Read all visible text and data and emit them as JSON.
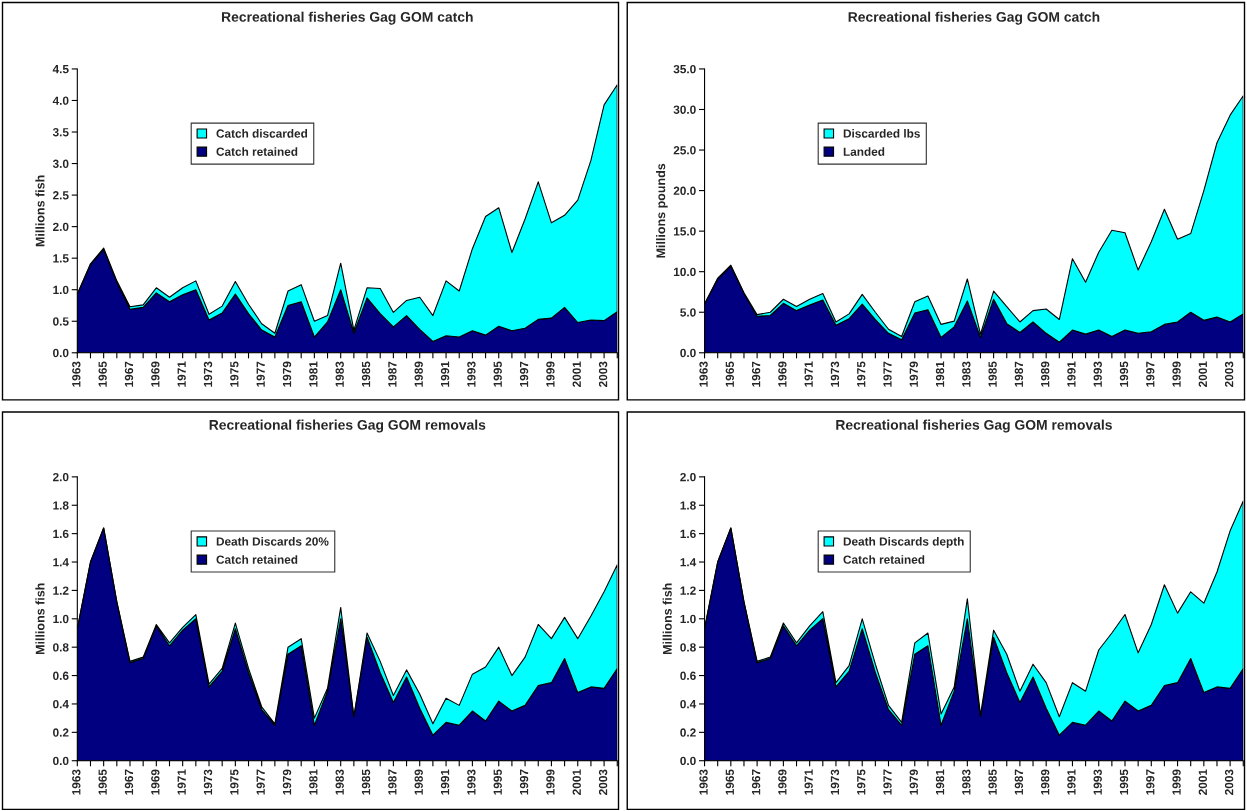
{
  "chart_data": [
    {
      "type": "area",
      "title": "Recreational fisheries Gag GOM catch",
      "ylabel": "Millions fish",
      "stacked": true,
      "legend": "top left",
      "grid": false,
      "categories": [
        "1963",
        null,
        "1965",
        null,
        "1967",
        null,
        "1969",
        null,
        "1971",
        null,
        "1973",
        null,
        "1975",
        null,
        "1977",
        null,
        "1979",
        null,
        "1981",
        null,
        "1983",
        null,
        "1985",
        null,
        "1987",
        null,
        "1989",
        null,
        "1991",
        null,
        "1993",
        null,
        "1995",
        null,
        "1997",
        null,
        "1999",
        null,
        "2001",
        null,
        "2003",
        null
      ],
      "ylim": [
        0,
        4.5
      ],
      "yticks": [
        {
          "value": 0,
          "label": "0.0"
        },
        0.5,
        {
          "value": 1,
          "label": "1.0"
        },
        1.5,
        {
          "value": 2,
          "label": "2.0"
        },
        2.5,
        {
          "value": 3,
          "label": "3.0"
        },
        3.5,
        {
          "value": 4,
          "label": "4.0"
        },
        4.5
      ],
      "series": [
        {
          "name": "Catch retained",
          "color": "#000080",
          "values": [
            0.93,
            1.4,
            1.64,
            1.12,
            0.69,
            0.72,
            0.95,
            0.81,
            0.92,
            1.0,
            0.52,
            0.63,
            0.93,
            0.62,
            0.36,
            0.25,
            0.75,
            0.81,
            0.25,
            0.49,
            1.0,
            0.31,
            0.87,
            0.62,
            0.41,
            0.59,
            0.37,
            0.18,
            0.27,
            0.25,
            0.35,
            0.28,
            0.42,
            0.35,
            0.39,
            0.53,
            0.55,
            0.72,
            0.48,
            0.52,
            0.51,
            0.65
          ]
        },
        {
          "name": "Catch discarded",
          "color": "#00ffff",
          "values": [
            0.0,
            0.01,
            0.02,
            0.02,
            0.04,
            0.04,
            0.08,
            0.07,
            0.11,
            0.14,
            0.09,
            0.11,
            0.2,
            0.15,
            0.1,
            0.06,
            0.23,
            0.27,
            0.25,
            0.1,
            0.42,
            0.05,
            0.16,
            0.4,
            0.23,
            0.24,
            0.51,
            0.41,
            0.87,
            0.73,
            1.3,
            1.88,
            1.88,
            1.24,
            1.73,
            2.18,
            1.51,
            1.46,
            1.94,
            2.53,
            3.42,
            3.6
          ]
        }
      ]
    },
    {
      "type": "area",
      "title": "Recreational fisheries Gag GOM catch",
      "ylabel": "Millions pounds",
      "stacked": true,
      "legend": "top left",
      "grid": false,
      "categories": [
        "1963",
        null,
        "1965",
        null,
        "1967",
        null,
        "1969",
        null,
        "1971",
        null,
        "1973",
        null,
        "1975",
        null,
        "1977",
        null,
        "1979",
        null,
        "1981",
        null,
        "1983",
        null,
        "1985",
        null,
        "1987",
        null,
        "1989",
        null,
        "1991",
        null,
        "1993",
        null,
        "1995",
        null,
        "1997",
        null,
        "1999",
        null,
        "2001",
        null,
        "2003",
        null
      ],
      "ylim": [
        0,
        35
      ],
      "yticks": [
        {
          "value": 0,
          "label": "0.0"
        },
        {
          "value": 5,
          "label": "5.0"
        },
        {
          "value": 10,
          "label": "10.0"
        },
        {
          "value": 15,
          "label": "15.0"
        },
        {
          "value": 20,
          "label": "20.0"
        },
        {
          "value": 25,
          "label": "25.0"
        },
        {
          "value": 30,
          "label": "30.0"
        },
        {
          "value": 35,
          "label": "35.0"
        }
      ],
      "series": [
        {
          "name": "Landed",
          "color": "#000080",
          "values": [
            6.0,
            9.1,
            10.7,
            7.3,
            4.5,
            4.6,
            6.1,
            5.2,
            5.9,
            6.5,
            3.4,
            4.2,
            6.0,
            4.1,
            2.4,
            1.6,
            4.9,
            5.3,
            1.9,
            3.2,
            6.4,
            1.9,
            6.6,
            3.6,
            2.5,
            3.8,
            2.4,
            1.3,
            2.8,
            2.3,
            2.8,
            2.0,
            2.8,
            2.4,
            2.6,
            3.5,
            3.8,
            5.0,
            4.0,
            4.4,
            3.8,
            4.8
          ]
        },
        {
          "name": "Discarded lbs",
          "color": "#00ffff",
          "values": [
            0.0,
            0.1,
            0.1,
            0.1,
            0.2,
            0.4,
            0.5,
            0.5,
            0.7,
            0.8,
            0.4,
            0.6,
            1.2,
            0.9,
            0.5,
            0.4,
            1.4,
            1.7,
            1.6,
            0.7,
            2.7,
            0.4,
            1.0,
            2.1,
            1.3,
            1.4,
            3.0,
            2.8,
            8.8,
            6.4,
            9.6,
            13.1,
            12.0,
            7.8,
            11.1,
            14.2,
            10.2,
            9.7,
            16.0,
            21.5,
            25.5,
            26.9
          ]
        }
      ]
    },
    {
      "type": "area",
      "title": "Recreational fisheries Gag GOM removals",
      "ylabel": "Millions fish",
      "stacked": true,
      "legend": "top left",
      "grid": false,
      "categories": [
        "1963",
        null,
        "1965",
        null,
        "1967",
        null,
        "1969",
        null,
        "1971",
        null,
        "1973",
        null,
        "1975",
        null,
        "1977",
        null,
        "1979",
        null,
        "1981",
        null,
        "1983",
        null,
        "1985",
        null,
        "1987",
        null,
        "1989",
        null,
        "1991",
        null,
        "1993",
        null,
        "1995",
        null,
        "1997",
        null,
        "1999",
        null,
        "2001",
        null,
        "2003",
        null
      ],
      "ylim": [
        0,
        2
      ],
      "yticks": [
        {
          "value": 0,
          "label": "0.0"
        },
        0.2,
        0.4,
        0.6,
        0.8,
        {
          "value": 1,
          "label": "1.0"
        },
        1.2,
        1.4,
        1.6,
        1.8,
        {
          "value": 2,
          "label": "2.0"
        }
      ],
      "series": [
        {
          "name": "Catch retained",
          "color": "#000080",
          "values": [
            0.93,
            1.4,
            1.64,
            1.12,
            0.69,
            0.72,
            0.95,
            0.81,
            0.92,
            1.0,
            0.52,
            0.63,
            0.93,
            0.62,
            0.36,
            0.25,
            0.75,
            0.81,
            0.25,
            0.49,
            1.0,
            0.31,
            0.87,
            0.62,
            0.41,
            0.59,
            0.37,
            0.18,
            0.27,
            0.25,
            0.35,
            0.28,
            0.42,
            0.35,
            0.39,
            0.53,
            0.55,
            0.72,
            0.48,
            0.52,
            0.51,
            0.65
          ]
        },
        {
          "name": "Death Discards 20%",
          "color": "#00ffff",
          "values": [
            0,
            0,
            0,
            0,
            0.01,
            0.01,
            0.01,
            0.02,
            0.02,
            0.03,
            0.02,
            0.02,
            0.04,
            0.03,
            0.02,
            0.01,
            0.05,
            0.05,
            0.05,
            0.02,
            0.08,
            0,
            0.03,
            0.08,
            0.05,
            0.05,
            0.1,
            0.08,
            0.17,
            0.14,
            0.26,
            0.38,
            0.38,
            0.25,
            0.34,
            0.43,
            0.31,
            0.29,
            0.38,
            0.5,
            0.68,
            0.73
          ]
        }
      ]
    },
    {
      "type": "area",
      "title": "Recreational fisheries Gag GOM removals",
      "ylabel": "Millions fish",
      "stacked": true,
      "legend": "top left",
      "grid": false,
      "categories": [
        "1963",
        null,
        "1965",
        null,
        "1967",
        null,
        "1969",
        null,
        "1971",
        null,
        "1973",
        null,
        "1975",
        null,
        "1977",
        null,
        "1979",
        null,
        "1981",
        null,
        "1983",
        null,
        "1985",
        null,
        "1987",
        null,
        "1989",
        null,
        "1991",
        null,
        "1993",
        null,
        "1995",
        null,
        "1997",
        null,
        "1999",
        null,
        "2001",
        null,
        "2003",
        null
      ],
      "ylim": [
        0,
        2
      ],
      "yticks": [
        {
          "value": 0,
          "label": "0.0"
        },
        0.2,
        0.4,
        0.6,
        0.8,
        {
          "value": 1,
          "label": "1.0"
        },
        1.2,
        1.4,
        1.6,
        1.8,
        {
          "value": 2,
          "label": "2.0"
        }
      ],
      "series": [
        {
          "name": "Catch retained",
          "color": "#000080",
          "values": [
            0.93,
            1.4,
            1.64,
            1.12,
            0.69,
            0.72,
            0.95,
            0.81,
            0.92,
            1.0,
            0.52,
            0.63,
            0.93,
            0.62,
            0.36,
            0.25,
            0.75,
            0.81,
            0.25,
            0.49,
            1.0,
            0.31,
            0.87,
            0.62,
            0.41,
            0.59,
            0.37,
            0.18,
            0.27,
            0.25,
            0.35,
            0.28,
            0.42,
            0.35,
            0.39,
            0.53,
            0.55,
            0.72,
            0.48,
            0.52,
            0.51,
            0.65
          ]
        },
        {
          "name": "Death Discards depth",
          "color": "#00ffff",
          "values": [
            0,
            0,
            0,
            0,
            0.01,
            0.01,
            0.02,
            0.02,
            0.03,
            0.05,
            0.03,
            0.04,
            0.07,
            0.06,
            0.03,
            0.02,
            0.08,
            0.09,
            0.08,
            0.03,
            0.14,
            0.01,
            0.05,
            0.13,
            0.08,
            0.09,
            0.18,
            0.13,
            0.28,
            0.24,
            0.43,
            0.62,
            0.61,
            0.41,
            0.57,
            0.71,
            0.49,
            0.47,
            0.63,
            0.81,
            1.11,
            1.18
          ]
        }
      ]
    }
  ]
}
